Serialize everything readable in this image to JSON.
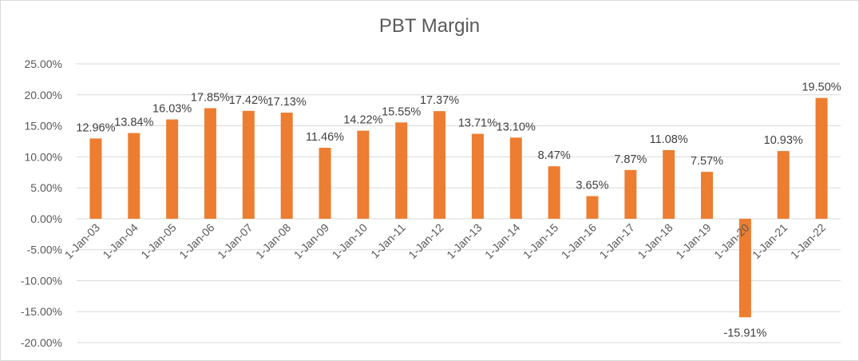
{
  "chart_data": {
    "type": "bar",
    "title": "PBT Margin",
    "xlabel": "",
    "ylabel": "",
    "categories": [
      "1-Jan-03",
      "1-Jan-04",
      "1-Jan-05",
      "1-Jan-06",
      "1-Jan-07",
      "1-Jan-08",
      "1-Jan-09",
      "1-Jan-10",
      "1-Jan-11",
      "1-Jan-12",
      "1-Jan-13",
      "1-Jan-14",
      "1-Jan-15",
      "1-Jan-16",
      "1-Jan-17",
      "1-Jan-18",
      "1-Jan-19",
      "1-Jan-20",
      "1-Jan-21",
      "1-Jan-22"
    ],
    "values": [
      12.96,
      13.84,
      16.03,
      17.85,
      17.42,
      17.13,
      11.46,
      14.22,
      15.55,
      17.37,
      13.71,
      13.1,
      8.47,
      3.65,
      7.87,
      11.08,
      7.57,
      -15.91,
      10.93,
      19.5
    ],
    "data_labels": [
      "12.96%",
      "13.84%",
      "16.03%",
      "17.85%",
      "17.42%",
      "17.13%",
      "11.46%",
      "14.22%",
      "15.55%",
      "17.37%",
      "13.71%",
      "13.10%",
      "8.47%",
      "3.65%",
      "7.87%",
      "11.08%",
      "7.57%",
      "-15.91%",
      "10.93%",
      "19.50%"
    ],
    "yticks": [
      25,
      20,
      15,
      10,
      5,
      0,
      -5,
      -10,
      -15,
      -20
    ],
    "ytick_labels": [
      "25.00%",
      "20.00%",
      "15.00%",
      "10.00%",
      "5.00%",
      "0.00%",
      "-5.00%",
      "-10.00%",
      "-15.00%",
      "-20.00%"
    ],
    "ylim": [
      -20,
      25
    ],
    "grid": true,
    "legend": "none",
    "bar_color": "#ED7D31"
  }
}
